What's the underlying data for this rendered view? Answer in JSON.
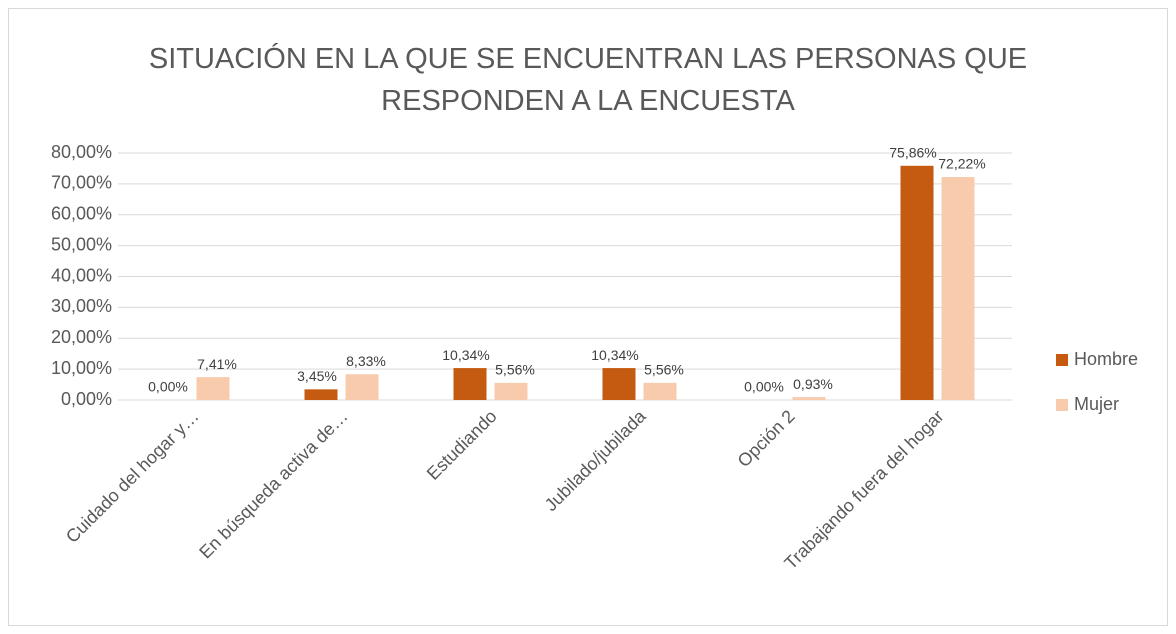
{
  "chart_data": {
    "type": "bar",
    "title": "SITUACIÓN EN LA QUE SE ENCUENTRAN LAS PERSONAS QUE RESPONDEN A LA ENCUESTA",
    "categories": [
      "Cuidado del hogar y…",
      "En búsqueda activa de…",
      "Estudiando",
      "Jubilado/jubilada",
      "Opción 2",
      "Trabajando fuera del hogar"
    ],
    "series": [
      {
        "name": "Hombre",
        "color": "#c55a11",
        "values": [
          0,
          3.45,
          10.34,
          10.34,
          0,
          75.86
        ],
        "value_labels": [
          "0,00%",
          "3,45%",
          "10,34%",
          "10,34%",
          "0,00%",
          "75,86%"
        ]
      },
      {
        "name": "Mujer",
        "color": "#f8cbad",
        "values": [
          7.41,
          8.33,
          5.56,
          5.56,
          0.93,
          72.22
        ],
        "value_labels": [
          "7,41%",
          "8,33%",
          "5,56%",
          "5,56%",
          "0,93%",
          "72,22%"
        ]
      }
    ],
    "ylim": [
      0,
      80
    ],
    "yticks": [
      {
        "value": 0,
        "label": "0,00%"
      },
      {
        "value": 10,
        "label": "10,00%"
      },
      {
        "value": 20,
        "label": "20,00%"
      },
      {
        "value": 30,
        "label": "30,00%"
      },
      {
        "value": 40,
        "label": "40,00%"
      },
      {
        "value": 50,
        "label": "50,00%"
      },
      {
        "value": 60,
        "label": "60,00%"
      },
      {
        "value": 70,
        "label": "70,00%"
      },
      {
        "value": 80,
        "label": "80,00%"
      }
    ],
    "grid": true,
    "legend": "right"
  }
}
